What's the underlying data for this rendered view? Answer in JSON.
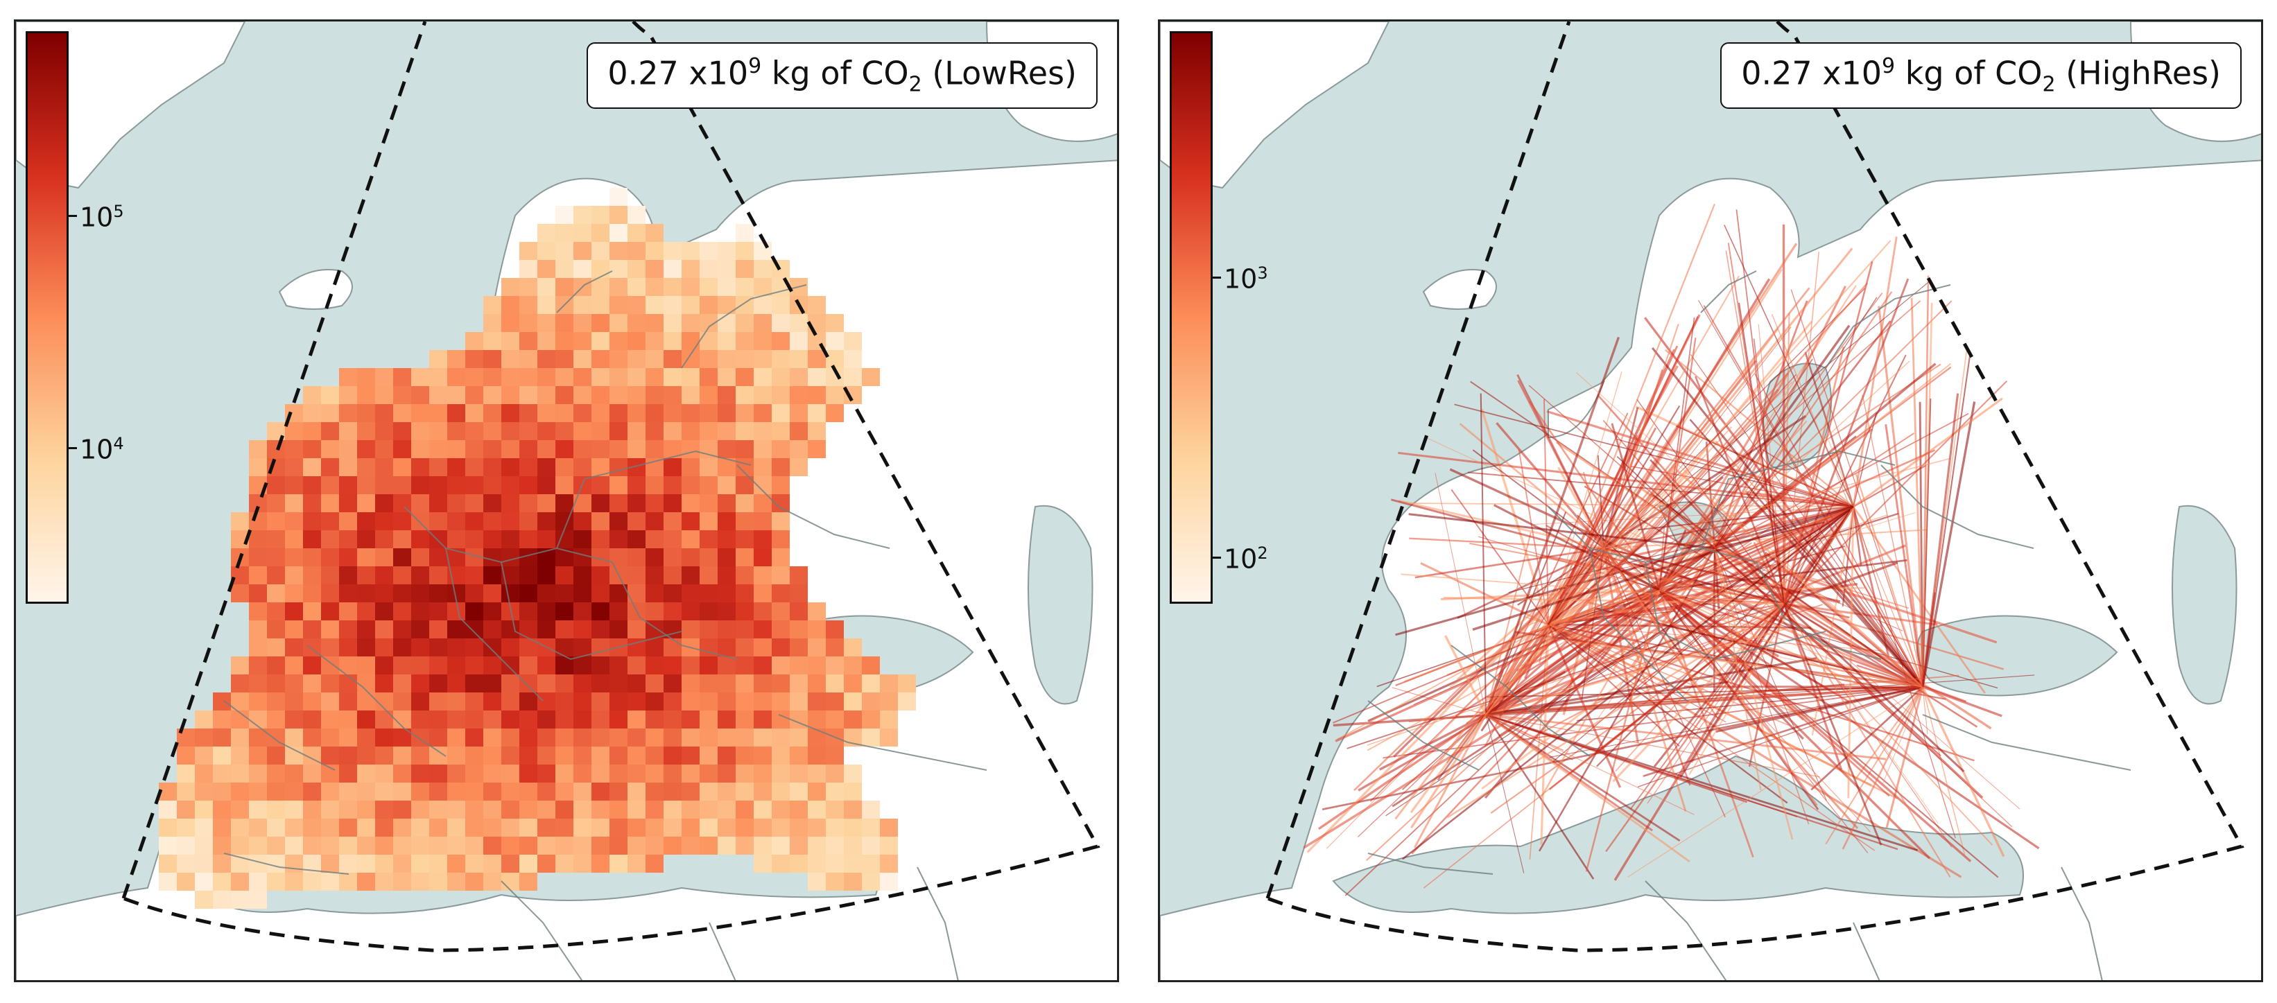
{
  "colors": {
    "sea": "#cfe0e0",
    "land": "#ffffff",
    "coast": "#8a9a9a",
    "colormap": [
      "#fff5eb",
      "#fdd49e",
      "#fc8d59",
      "#d7301f",
      "#7f0000"
    ]
  },
  "panels": [
    {
      "id": "lowres",
      "title": {
        "prefix": "0.27 x10",
        "exp": "9",
        "mid": " kg of CO",
        "sub": "2",
        "suffix": " (LowRes)"
      },
      "colorbar": {
        "scale": "log",
        "ticks": [
          {
            "base": "10",
            "exp": "4"
          },
          {
            "base": "10",
            "exp": "5"
          }
        ]
      },
      "style": "grid"
    },
    {
      "id": "highres",
      "title": {
        "prefix": "0.27 x10",
        "exp": "9",
        "mid": " kg of CO",
        "sub": "2",
        "suffix": " (HighRes)"
      },
      "colorbar": {
        "scale": "log",
        "ticks": [
          {
            "base": "10",
            "exp": "2"
          },
          {
            "base": "10",
            "exp": "3"
          }
        ]
      },
      "style": "tracks"
    }
  ]
}
